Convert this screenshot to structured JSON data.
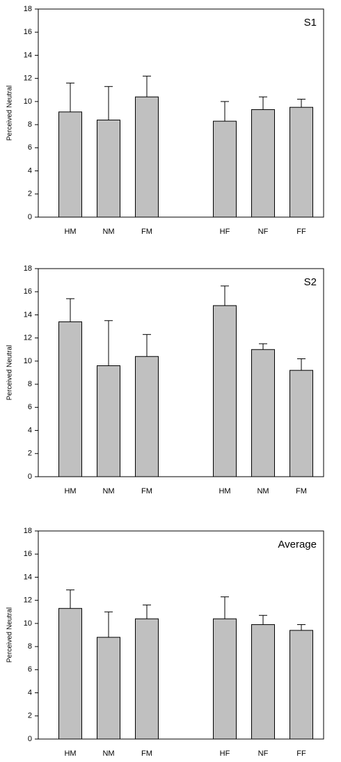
{
  "chart_data": [
    {
      "type": "bar",
      "title": "S1",
      "ylabel": "Perceived Neutral",
      "categories": [
        "HM",
        "NM",
        "FM",
        "HF",
        "NF",
        "FF"
      ],
      "values": [
        9.1,
        8.4,
        10.4,
        8.3,
        9.3,
        9.5
      ],
      "errors": [
        2.5,
        2.9,
        1.8,
        1.7,
        1.1,
        0.7
      ],
      "color": "#c0c0c0",
      "ylim": [
        0,
        18
      ],
      "yticks": [
        0,
        2,
        4,
        6,
        8,
        10,
        12,
        14,
        16,
        18
      ]
    },
    {
      "type": "bar",
      "title": "S2",
      "ylabel": "Perceived Neutral",
      "categories": [
        "HM",
        "NM",
        "FM",
        "HM",
        "NM",
        "FM"
      ],
      "values": [
        13.4,
        9.6,
        10.4,
        14.8,
        11.0,
        9.2
      ],
      "errors": [
        2.0,
        3.9,
        1.9,
        1.7,
        0.5,
        1.0
      ],
      "color": "#c0c0c0",
      "ylim": [
        0,
        18
      ],
      "yticks": [
        0,
        2,
        4,
        6,
        8,
        10,
        12,
        14,
        16,
        18
      ]
    },
    {
      "type": "bar",
      "title": "Average",
      "ylabel": "Perceived Neutral",
      "categories": [
        "HM",
        "NM",
        "FM",
        "HF",
        "NF",
        "FF"
      ],
      "values": [
        11.3,
        8.8,
        10.4,
        10.4,
        9.9,
        9.4
      ],
      "errors": [
        1.6,
        2.2,
        1.2,
        1.9,
        0.8,
        0.5
      ],
      "color": "#c0c0c0",
      "ylim": [
        0,
        18
      ],
      "yticks": [
        0,
        2,
        4,
        6,
        8,
        10,
        12,
        14,
        16,
        18
      ]
    }
  ]
}
